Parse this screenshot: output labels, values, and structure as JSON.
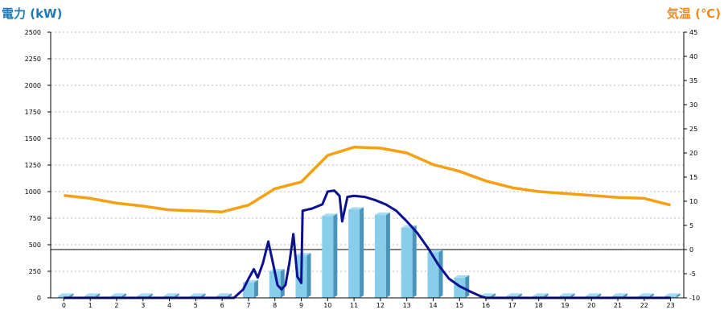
{
  "chart_data": {
    "type": "bar",
    "y_left_title": "電力 (kW)",
    "y_right_title": "気温 (℃)",
    "categories": [
      "0",
      "1",
      "2",
      "3",
      "4",
      "5",
      "6",
      "7",
      "8",
      "9",
      "10",
      "11",
      "12",
      "13",
      "14",
      "15",
      "16",
      "17",
      "18",
      "19",
      "20",
      "21",
      "22",
      "23"
    ],
    "y_left_ticks": [
      "0",
      "250",
      "500",
      "750",
      "1000",
      "1250",
      "1500",
      "1750",
      "2000",
      "2250",
      "2500"
    ],
    "y_right_ticks": [
      "-10",
      "-5",
      "0",
      "5",
      "10",
      "15",
      "20",
      "25",
      "30",
      "35",
      "40",
      "45"
    ],
    "ylim_left": [
      0,
      2500
    ],
    "ylim_right": [
      -10,
      45
    ],
    "grid": true,
    "series": [
      {
        "type": "bar",
        "axis": "left",
        "values": [
          20,
          20,
          20,
          20,
          20,
          20,
          20,
          145,
          250,
          400,
          770,
          830,
          780,
          660,
          430,
          190,
          20,
          20,
          20,
          20,
          20,
          20,
          20,
          20
        ]
      },
      {
        "type": "line",
        "axis": "right",
        "x": [
          0,
          1,
          2,
          3,
          4,
          5,
          6,
          7,
          8,
          9,
          10,
          11,
          12,
          13,
          14,
          15,
          16,
          17,
          18,
          19,
          20,
          21,
          22,
          23
        ],
        "values": [
          11.2,
          10.6,
          9.6,
          9.0,
          8.2,
          8.0,
          7.8,
          9.2,
          12.6,
          14.0,
          19.5,
          21.2,
          21.0,
          20.0,
          17.6,
          16.2,
          14.2,
          12.8,
          12.0,
          11.6,
          11.2,
          10.8,
          10.6,
          9.2
        ]
      },
      {
        "type": "line",
        "axis": "left",
        "x": [
          0,
          1,
          2,
          3,
          4,
          5,
          6,
          6.45,
          6.8,
          7.0,
          7.2,
          7.35,
          7.55,
          7.75,
          7.95,
          8.1,
          8.25,
          8.4,
          8.55,
          8.7,
          8.85,
          9.0,
          9.05,
          9.4,
          9.8,
          10.0,
          10.25,
          10.45,
          10.55,
          10.75,
          11.0,
          11.4,
          11.8,
          12.2,
          12.6,
          13.0,
          13.4,
          13.8,
          14.2,
          14.6,
          15.0,
          15.4,
          15.8,
          16.0,
          17,
          18,
          19,
          20,
          21,
          22,
          23
        ],
        "values": [
          0,
          0,
          0,
          0,
          0,
          0,
          0,
          0,
          80,
          180,
          270,
          190,
          330,
          530,
          300,
          120,
          80,
          120,
          330,
          600,
          200,
          140,
          820,
          840,
          880,
          1000,
          1010,
          960,
          720,
          950,
          960,
          950,
          920,
          880,
          820,
          720,
          610,
          470,
          310,
          180,
          110,
          60,
          15,
          0,
          0,
          0,
          0,
          0,
          0,
          0,
          0
        ]
      }
    ]
  },
  "colors": {
    "bar_face": "#87ceeb",
    "bar_top": "#a6dcf2",
    "bar_side": "#4a94bb",
    "temperature_line": "#f5a012",
    "power_line": "#0d1191",
    "left_title": "#1e7ab8",
    "right_title": "#f08c1e"
  }
}
